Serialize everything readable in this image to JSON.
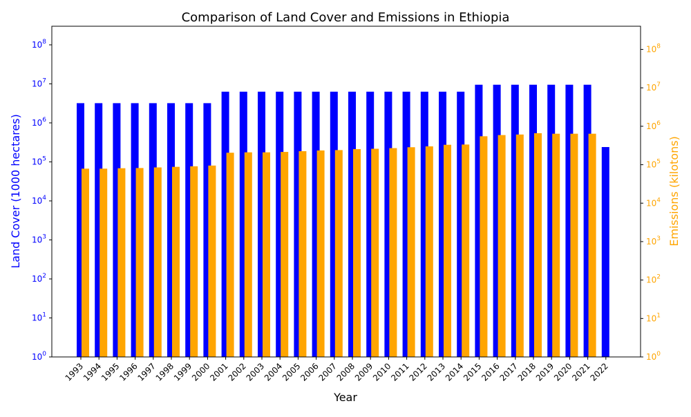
{
  "chart_data": {
    "type": "bar",
    "title": "Comparison of Land Cover and Emissions in Ethiopia",
    "xlabel": "Year",
    "ylabel_left": "Land Cover (1000 hectares)",
    "ylabel_right": "Emissions (kilotons)",
    "y_scale": "log",
    "ylim_left": [
      1,
      300000000
    ],
    "ylim_right": [
      1,
      400000000
    ],
    "grid": false,
    "legend": "none",
    "colors": {
      "left_axis": "#0000ff",
      "right_axis": "#ffa500",
      "land_cover": "#0000ff",
      "emissions": "#ffa500"
    },
    "categories": [
      "1993",
      "1994",
      "1995",
      "1996",
      "1997",
      "1998",
      "1999",
      "2000",
      "2001",
      "2002",
      "2003",
      "2004",
      "2005",
      "2006",
      "2007",
      "2008",
      "2009",
      "2010",
      "2011",
      "2012",
      "2013",
      "2014",
      "2015",
      "2016",
      "2017",
      "2018",
      "2019",
      "2020",
      "2021",
      "2022"
    ],
    "left_ticks": [
      "10^0",
      "10^1",
      "10^2",
      "10^3",
      "10^4",
      "10^5",
      "10^6",
      "10^7",
      "10^8"
    ],
    "right_ticks": [
      "10^0",
      "10^1",
      "10^2",
      "10^3",
      "10^4",
      "10^5",
      "10^6",
      "10^7",
      "10^8"
    ],
    "series": [
      {
        "axis": "left",
        "values": [
          3200000,
          3200000,
          3200000,
          3200000,
          3200000,
          3200000,
          3200000,
          3200000,
          6300000,
          6300000,
          6300000,
          6300000,
          6300000,
          6300000,
          6300000,
          6300000,
          6300000,
          6300000,
          6300000,
          6300000,
          6300000,
          6300000,
          9500000,
          9500000,
          9500000,
          9500000,
          9500000,
          9500000,
          9500000,
          240000
        ]
      },
      {
        "axis": "right",
        "values": [
          79000,
          79000,
          81000,
          82000,
          85000,
          88000,
          91000,
          95000,
          205000,
          210000,
          210000,
          215000,
          225000,
          235000,
          240000,
          255000,
          260000,
          270000,
          285000,
          300000,
          330000,
          335000,
          550000,
          590000,
          610000,
          660000,
          640000,
          640000,
          640000,
          null
        ]
      }
    ]
  }
}
